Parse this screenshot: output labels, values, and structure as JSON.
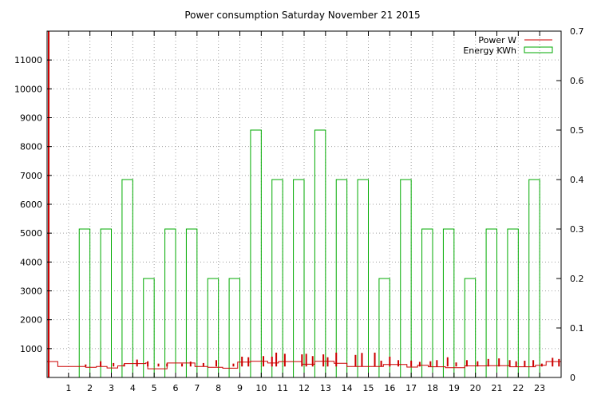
{
  "chart_data": {
    "type": "line",
    "title": "Power consumption Saturday November 21 2015",
    "xlabel": "",
    "ylabel": "",
    "y2label": "",
    "xlim": [
      0,
      24
    ],
    "ylim": [
      0,
      12000
    ],
    "y2lim": [
      0,
      0.7
    ],
    "x_ticks": [
      1,
      2,
      3,
      4,
      5,
      6,
      7,
      8,
      9,
      10,
      11,
      12,
      13,
      14,
      15,
      16,
      17,
      18,
      19,
      20,
      21,
      22,
      23
    ],
    "y_ticks": [
      1000,
      2000,
      3000,
      4000,
      5000,
      6000,
      7000,
      8000,
      9000,
      10000,
      11000
    ],
    "y2_ticks": [
      0,
      0.1,
      0.2,
      0.3,
      0.4,
      0.5,
      0.6,
      0.7
    ],
    "grid": true,
    "legend_position": "top-right",
    "series": [
      {
        "name": "Power W",
        "axis": "y1",
        "style": "line",
        "color": "#cc0000",
        "x": [
          0,
          0.5,
          0.5,
          1.8,
          1.8,
          2.3,
          2.3,
          2.8,
          2.8,
          3.3,
          3.3,
          3.6,
          3.6,
          4.6,
          4.6,
          4.7,
          4.7,
          5.6,
          5.6,
          6.9,
          6.9,
          7.5,
          7.5,
          8.2,
          8.2,
          8.9,
          8.9,
          9.5,
          9.5,
          10.3,
          10.3,
          10.8,
          10.8,
          11.9,
          11.9,
          12.5,
          12.5,
          13.4,
          13.4,
          14.0,
          14.0,
          15.7,
          15.7,
          16.8,
          16.8,
          17.3,
          17.3,
          17.8,
          17.8,
          18.6,
          18.6,
          19.5,
          19.5,
          20.5,
          20.5,
          21.6,
          21.6,
          22.8,
          22.8,
          23.3,
          23.3,
          24
        ],
        "y": [
          550,
          550,
          380,
          380,
          350,
          350,
          380,
          380,
          330,
          330,
          400,
          400,
          480,
          480,
          500,
          500,
          300,
          300,
          500,
          500,
          380,
          380,
          350,
          350,
          320,
          320,
          530,
          530,
          560,
          560,
          500,
          500,
          550,
          550,
          460,
          460,
          560,
          560,
          490,
          490,
          380,
          380,
          450,
          450,
          360,
          360,
          420,
          420,
          370,
          370,
          340,
          340,
          400,
          400,
          410,
          410,
          370,
          370,
          420,
          420,
          550,
          550
        ]
      },
      {
        "name": "Power W spikes",
        "axis": "y1",
        "style": "spikes",
        "color": "#cc0000",
        "x": [
          1.8,
          2.5,
          3.1,
          3.6,
          4.2,
          4.7,
          5.2,
          5.6,
          6.3,
          6.7,
          7.3,
          7.9,
          8.7,
          9.1,
          9.4,
          10.1,
          10.5,
          10.7,
          11.1,
          11.9,
          12.1,
          12.4,
          12.9,
          13.1,
          13.5,
          14.4,
          14.7,
          15.3,
          15.6,
          16.0,
          16.4,
          17.0,
          17.4,
          17.9,
          18.2,
          18.7,
          19.1,
          19.6,
          20.1,
          20.6,
          21.1,
          21.6,
          21.9,
          22.3,
          22.7,
          23.1,
          23.6,
          23.9
        ],
        "y": [
          450,
          560,
          500,
          460,
          620,
          560,
          480,
          480,
          480,
          550,
          500,
          600,
          480,
          720,
          700,
          740,
          720,
          860,
          820,
          800,
          820,
          740,
          800,
          700,
          860,
          780,
          850,
          860,
          580,
          720,
          600,
          580,
          540,
          560,
          600,
          700,
          520,
          600,
          560,
          640,
          660,
          600,
          560,
          580,
          600,
          480,
          680,
          640
        ]
      },
      {
        "name": "Energy KWh",
        "axis": "y2",
        "style": "boxes",
        "color": "#00aa00",
        "x": [
          1,
          2,
          3,
          4,
          5,
          6,
          7,
          8,
          9,
          10,
          11,
          12,
          13,
          14,
          15,
          16,
          17,
          18,
          19,
          20,
          21,
          22,
          23
        ],
        "values": [
          0.0,
          0.3,
          0.3,
          0.4,
          0.2,
          0.3,
          0.3,
          0.2,
          0.2,
          0.5,
          0.4,
          0.4,
          0.5,
          0.4,
          0.4,
          0.2,
          0.4,
          0.3,
          0.3,
          0.2,
          0.3,
          0.3,
          0.4
        ]
      }
    ],
    "legend": [
      {
        "label": "Power W",
        "color": "#cc0000",
        "style": "line"
      },
      {
        "label": "Energy KWh",
        "color": "#00aa00",
        "style": "box"
      }
    ],
    "colors": {
      "axis": "#000000",
      "grid": "#a0a0a0",
      "power": "#cc0000",
      "energy": "#00aa00"
    }
  }
}
